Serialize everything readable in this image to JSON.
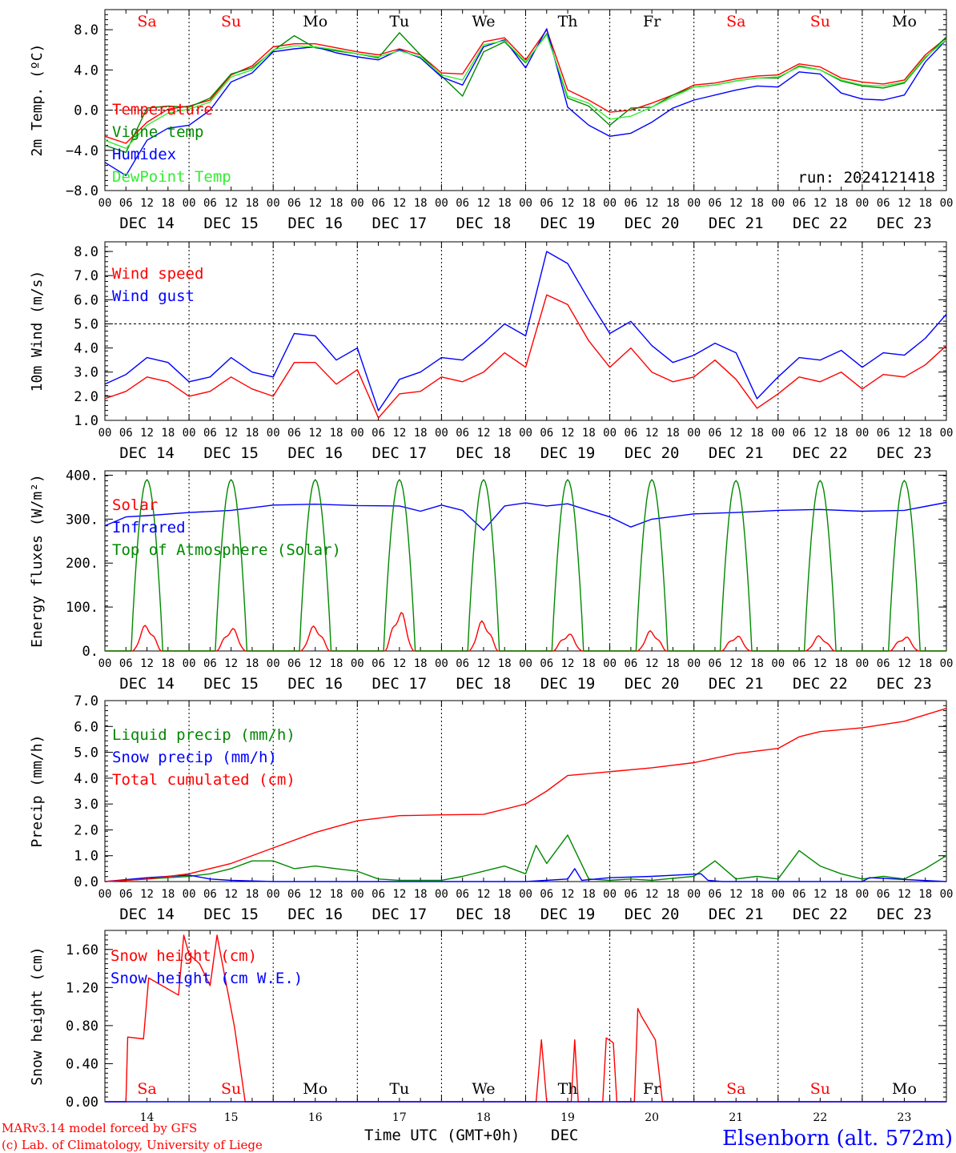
{
  "days": [
    "DEC 14",
    "DEC 15",
    "DEC 16",
    "DEC 17",
    "DEC 18",
    "DEC 19",
    "DEC 20",
    "DEC 21",
    "DEC 22",
    "DEC 23"
  ],
  "hour_ticks": [
    "00",
    "06",
    "12",
    "18"
  ],
  "last_hour_tick": "00",
  "weekdays": [
    "Sa",
    "Su",
    "Mo",
    "Tu",
    "We",
    "Th",
    "Fr",
    "Sa",
    "Su",
    "Mo"
  ],
  "weekday_colors": [
    "#ff0000",
    "#ff0000",
    "#000000",
    "#000000",
    "#000000",
    "#000000",
    "#000000",
    "#ff0000",
    "#ff0000",
    "#000000"
  ],
  "bottom_day_numbers": [
    "14",
    "15",
    "16",
    "17",
    "18",
    "19",
    "20",
    "21",
    "22",
    "23"
  ],
  "run_label": "run: 2024121418",
  "footer": {
    "credit_line1": "MARv3.14 model forced by GFS",
    "credit_line2": "(c) Lab. of Climatology, University of Liege",
    "time_axis_label": "Time UTC (GMT+0h)",
    "month": "DEC",
    "station": "Elsenborn (alt. 572m)"
  },
  "chart_data": [
    {
      "id": "temp",
      "type": "line",
      "ylabel": "2m Temp. (ºC)",
      "ylim": [
        -8,
        10
      ],
      "yticks": [
        -8,
        -4,
        0,
        4,
        8
      ],
      "ytick_labels": [
        "−8.0",
        "−4.0",
        "0.0",
        "4.0",
        "8.0"
      ],
      "reference_line": 0,
      "x_unit": "hours since DEC 14 00 UTC",
      "series": [
        {
          "name": "Temperature",
          "color": "#ff0000",
          "x": [
            0,
            6,
            12,
            18,
            24,
            30,
            36,
            42,
            48,
            54,
            60,
            66,
            72,
            78,
            84,
            90,
            96,
            102,
            108,
            114,
            120,
            126,
            132,
            138,
            144,
            150,
            156,
            162,
            168,
            174,
            180,
            186,
            192,
            198,
            204,
            210,
            216,
            222,
            228,
            234,
            240
          ],
          "y": [
            -2.6,
            -3.3,
            -1.2,
            0.1,
            0.4,
            1.0,
            3.5,
            4.4,
            6.3,
            6.6,
            6.6,
            6.2,
            5.8,
            5.5,
            6.1,
            5.5,
            3.7,
            3.6,
            6.8,
            7.2,
            5.0,
            8.0,
            2.0,
            1.0,
            -0.2,
            0.0,
            0.7,
            1.5,
            2.5,
            2.7,
            3.1,
            3.4,
            3.5,
            4.6,
            4.3,
            3.2,
            2.8,
            2.6,
            3.0,
            5.5,
            7.2
          ]
        },
        {
          "name": "Vigne temp",
          "color": "#008800",
          "x": [
            0,
            6,
            12,
            18,
            24,
            30,
            36,
            42,
            48,
            54,
            60,
            66,
            72,
            78,
            84,
            90,
            96,
            102,
            108,
            114,
            120,
            126,
            132,
            138,
            144,
            150,
            156,
            162,
            168,
            174,
            180,
            186,
            192,
            198,
            204,
            210,
            216,
            222,
            228,
            234,
            240
          ],
          "y": [
            -3.5,
            -4.2,
            0.2,
            0.4,
            0.3,
            1.2,
            3.6,
            4.2,
            5.9,
            7.4,
            6.2,
            5.9,
            5.6,
            5.2,
            7.7,
            5.5,
            3.4,
            1.4,
            5.8,
            6.8,
            4.7,
            7.6,
            1.2,
            0.4,
            -1.5,
            0.2,
            0.3,
            1.5,
            2.3,
            2.5,
            2.9,
            3.2,
            3.2,
            4.4,
            4.0,
            2.9,
            2.4,
            2.2,
            2.7,
            5.2,
            7.3
          ]
        },
        {
          "name": "Humidex",
          "color": "#0000ff",
          "x": [
            0,
            6,
            12,
            18,
            24,
            30,
            36,
            42,
            48,
            54,
            60,
            66,
            72,
            78,
            84,
            90,
            96,
            102,
            108,
            114,
            120,
            126,
            132,
            138,
            144,
            150,
            156,
            162,
            168,
            174,
            180,
            186,
            192,
            198,
            204,
            210,
            216,
            222,
            228,
            234,
            240
          ],
          "y": [
            -5.2,
            -6.5,
            -3.0,
            -1.8,
            -1.5,
            0.0,
            2.8,
            3.7,
            5.8,
            6.1,
            6.3,
            5.7,
            5.3,
            5.0,
            6.0,
            5.2,
            3.3,
            2.5,
            6.3,
            7.0,
            4.2,
            8.1,
            0.3,
            -1.5,
            -2.6,
            -2.3,
            -1.2,
            0.2,
            1.0,
            1.5,
            2.0,
            2.4,
            2.3,
            3.8,
            3.6,
            1.7,
            1.1,
            1.0,
            1.5,
            4.8,
            7.0
          ]
        },
        {
          "name": "DewPoint Temp",
          "color": "#33ee33",
          "x": [
            0,
            6,
            12,
            18,
            24,
            30,
            36,
            42,
            48,
            54,
            60,
            66,
            72,
            78,
            84,
            90,
            96,
            102,
            108,
            114,
            120,
            126,
            132,
            138,
            144,
            150,
            156,
            162,
            168,
            174,
            180,
            186,
            192,
            198,
            204,
            210,
            216,
            222,
            228,
            234,
            240
          ],
          "y": [
            -3.0,
            -3.8,
            -1.5,
            -0.3,
            0.1,
            0.8,
            3.3,
            4.0,
            6.0,
            6.4,
            6.3,
            6.0,
            5.6,
            5.3,
            5.9,
            5.3,
            3.5,
            3.0,
            6.5,
            6.9,
            4.8,
            7.5,
            1.4,
            0.7,
            -0.9,
            -0.6,
            0.3,
            1.3,
            2.3,
            2.5,
            2.9,
            3.2,
            3.3,
            4.3,
            4.0,
            3.0,
            2.5,
            2.4,
            2.8,
            5.3,
            7.0
          ]
        }
      ]
    },
    {
      "id": "wind",
      "type": "line",
      "ylabel": "10m Wind (m/s)",
      "ylim": [
        1,
        8.4
      ],
      "yticks": [
        1,
        2,
        3,
        4,
        5,
        6,
        7,
        8
      ],
      "ytick_labels": [
        "1.0",
        "2.0",
        "3.0",
        "4.0",
        "5.0",
        "6.0",
        "7.0",
        "8.0"
      ],
      "reference_line": 5,
      "series": [
        {
          "name": "Wind speed",
          "color": "#ff0000",
          "x": [
            0,
            6,
            12,
            18,
            24,
            30,
            36,
            42,
            48,
            54,
            60,
            66,
            72,
            78,
            84,
            90,
            96,
            102,
            108,
            114,
            120,
            126,
            132,
            138,
            144,
            150,
            156,
            162,
            168,
            174,
            180,
            186,
            192,
            198,
            204,
            210,
            216,
            222,
            228,
            234,
            240
          ],
          "y": [
            1.9,
            2.2,
            2.8,
            2.6,
            2.0,
            2.2,
            2.8,
            2.3,
            2.0,
            3.4,
            3.4,
            2.5,
            3.1,
            1.1,
            2.1,
            2.2,
            2.8,
            2.6,
            3.0,
            3.8,
            3.2,
            6.2,
            5.8,
            4.3,
            3.2,
            4.0,
            3.0,
            2.6,
            2.8,
            3.5,
            2.7,
            1.5,
            2.1,
            2.8,
            2.6,
            3.0,
            2.3,
            2.9,
            2.8,
            3.3,
            4.1
          ]
        },
        {
          "name": "Wind gust",
          "color": "#0000ff",
          "x": [
            0,
            6,
            12,
            18,
            24,
            30,
            36,
            42,
            48,
            54,
            60,
            66,
            72,
            78,
            84,
            90,
            96,
            102,
            108,
            114,
            120,
            126,
            132,
            138,
            144,
            150,
            156,
            162,
            168,
            174,
            180,
            186,
            192,
            198,
            204,
            210,
            216,
            222,
            228,
            234,
            240
          ],
          "y": [
            2.5,
            2.9,
            3.6,
            3.4,
            2.6,
            2.8,
            3.6,
            3.0,
            2.8,
            4.6,
            4.5,
            3.5,
            4.0,
            1.4,
            2.7,
            3.0,
            3.6,
            3.5,
            4.2,
            5.0,
            4.5,
            8.0,
            7.5,
            6.0,
            4.6,
            5.1,
            4.1,
            3.4,
            3.7,
            4.2,
            3.8,
            1.9,
            2.8,
            3.6,
            3.5,
            3.9,
            3.2,
            3.8,
            3.7,
            4.4,
            5.4
          ]
        }
      ]
    },
    {
      "id": "energy",
      "type": "line",
      "ylabel": "Energy fluxes (W/m²)",
      "ylim": [
        0,
        410
      ],
      "yticks": [
        0,
        100,
        200,
        300,
        400
      ],
      "ytick_labels": [
        "0.",
        "100.",
        "200.",
        "300.",
        "400."
      ],
      "series": [
        {
          "name": "Solar",
          "color": "#ff0000",
          "daily_peaks": [
            62,
            55,
            60,
            95,
            72,
            42,
            48,
            37,
            36,
            35
          ]
        },
        {
          "name": "Infrared",
          "color": "#0000ff",
          "x": [
            0,
            6,
            12,
            24,
            36,
            48,
            60,
            72,
            84,
            90,
            96,
            102,
            108,
            114,
            120,
            126,
            132,
            138,
            144,
            150,
            156,
            168,
            180,
            192,
            204,
            216,
            228,
            240
          ],
          "y": [
            285,
            305,
            308,
            315,
            320,
            332,
            334,
            331,
            330,
            318,
            332,
            320,
            275,
            330,
            337,
            330,
            335,
            320,
            305,
            282,
            300,
            312,
            315,
            320,
            322,
            318,
            320,
            338
          ]
        },
        {
          "name": "Top of Atmosphere (Solar)",
          "color": "#008800",
          "daily_peaks": [
            390,
            390,
            390,
            390,
            390,
            390,
            390,
            388,
            388,
            388
          ]
        }
      ]
    },
    {
      "id": "precip",
      "type": "line",
      "ylabel": "Precip (mm/h)",
      "ylim": [
        0,
        7
      ],
      "yticks": [
        0,
        1,
        2,
        3,
        4,
        5,
        6,
        7
      ],
      "ytick_labels": [
        "0.0",
        "1.0",
        "2.0",
        "3.0",
        "4.0",
        "5.0",
        "6.0",
        "7.0"
      ],
      "series": [
        {
          "name": "Liquid precip (mm/h)",
          "color": "#008800",
          "x": [
            0,
            12,
            24,
            30,
            36,
            42,
            48,
            54,
            60,
            66,
            72,
            78,
            84,
            96,
            102,
            108,
            114,
            120,
            123,
            126,
            132,
            138,
            144,
            150,
            156,
            168,
            174,
            180,
            186,
            192,
            198,
            204,
            210,
            216,
            222,
            228,
            234,
            240
          ],
          "y": [
            0,
            0.1,
            0.2,
            0.3,
            0.5,
            0.8,
            0.8,
            0.5,
            0.6,
            0.5,
            0.4,
            0.1,
            0.05,
            0.05,
            0.2,
            0.4,
            0.6,
            0.3,
            1.4,
            0.7,
            1.8,
            0.1,
            0.05,
            0.1,
            0.05,
            0.2,
            0.8,
            0.1,
            0.2,
            0.1,
            1.2,
            0.6,
            0.3,
            0.1,
            0.2,
            0.1,
            0.5,
            1.0
          ]
        },
        {
          "name": "Snow precip (mm/h)",
          "color": "#0000ff",
          "x": [
            0,
            12,
            18,
            24,
            30,
            36,
            48,
            96,
            120,
            132,
            134,
            136,
            144,
            156,
            170,
            172,
            176,
            216,
            218,
            240
          ],
          "y": [
            0,
            0.15,
            0.2,
            0.25,
            0.1,
            0.05,
            0,
            0,
            0,
            0.1,
            0.5,
            0.05,
            0.15,
            0.2,
            0.3,
            0.05,
            0,
            0,
            0.15,
            0
          ]
        },
        {
          "name": "Total cumulated (cm)",
          "color": "#ff0000",
          "x": [
            0,
            12,
            24,
            36,
            48,
            60,
            72,
            84,
            96,
            108,
            120,
            126,
            132,
            144,
            156,
            168,
            180,
            192,
            198,
            204,
            216,
            228,
            240
          ],
          "y": [
            0,
            0.1,
            0.3,
            0.7,
            1.3,
            1.9,
            2.35,
            2.55,
            2.58,
            2.6,
            3.0,
            3.5,
            4.1,
            4.25,
            4.4,
            4.6,
            4.95,
            5.15,
            5.6,
            5.8,
            5.95,
            6.2,
            6.7
          ]
        }
      ]
    },
    {
      "id": "snow",
      "type": "line",
      "ylabel": "Snow height (cm)",
      "ylim": [
        0,
        1.8
      ],
      "yticks": [
        0,
        0.4,
        0.8,
        1.2,
        1.6
      ],
      "ytick_labels": [
        "0.00",
        "0.40",
        "0.80",
        "1.20",
        "1.60"
      ],
      "series": [
        {
          "name": "Snow height (cm)",
          "color": "#ff0000",
          "x": [
            0,
            6,
            6.5,
            11,
            12.5,
            21,
            22.5,
            24,
            27,
            30,
            32,
            33,
            37,
            40,
            41,
            99,
            100,
            101,
            123,
            124.5,
            126,
            133,
            134,
            135,
            142,
            143,
            145,
            146,
            151,
            152,
            153,
            157,
            159,
            161,
            240
          ],
          "y": [
            0,
            0,
            0.68,
            0.66,
            1.3,
            1.12,
            1.75,
            1.55,
            1.45,
            1.22,
            1.75,
            1.55,
            0.78,
            0,
            0,
            0,
            0,
            0,
            0,
            0.65,
            0,
            0,
            0.65,
            0,
            0,
            0.67,
            0.62,
            0,
            0,
            0.98,
            0.9,
            0.65,
            0,
            0,
            0
          ]
        },
        {
          "name": "Snow height (cm W.E.)",
          "color": "#0000ff",
          "x": [
            0,
            240
          ],
          "y": [
            0,
            0
          ]
        }
      ]
    }
  ]
}
